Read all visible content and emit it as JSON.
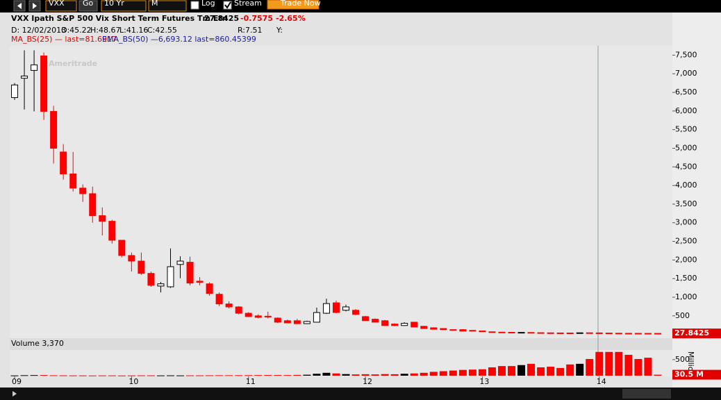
{
  "toolbar": {
    "symbol": "VXX",
    "go": "Go",
    "period": "10 Yr",
    "aggregation": "M",
    "log": "Log",
    "stream": "Stream",
    "trade": "Trade Now"
  },
  "header": {
    "name": "VXX Ipath S&P 500 Vix Short Term Futures Tm Etn",
    "price": "27.8425",
    "change": "-0.7575",
    "change_pct": "-2.65%",
    "date": "D: 12/02/2013",
    "open": "O:45.22",
    "high": "H:48.67",
    "low": "L:41.16",
    "close": "C:42.55",
    "range": "R:7.51",
    "y": "Y:",
    "ma": "MA_BS(25) — last=81.6917",
    "ema": "EMA_BS(50) —6,693.12 last=860.45399"
  },
  "watermark": "Ameritrade",
  "chart_data": {
    "type": "candlestick",
    "up_color": "#000000",
    "down_color": "#ff0000",
    "ohlc": [
      [
        6360,
        6750,
        6300,
        6700
      ],
      [
        6880,
        7630,
        6040,
        6940
      ],
      [
        7090,
        7630,
        5990,
        7240
      ],
      [
        7480,
        7570,
        5760,
        5990
      ],
      [
        5990,
        6140,
        4590,
        5000
      ],
      [
        4900,
        5110,
        4160,
        4310
      ],
      [
        4310,
        4900,
        3840,
        3930
      ],
      [
        3930,
        4030,
        3560,
        3780
      ],
      [
        3780,
        3970,
        3000,
        3190
      ],
      [
        3190,
        3410,
        2660,
        3040
      ],
      [
        3040,
        3080,
        2440,
        2530
      ],
      [
        2530,
        2530,
        2070,
        2120
      ],
      [
        2120,
        2200,
        1690,
        1970
      ],
      [
        1970,
        2200,
        1600,
        1640
      ],
      [
        1640,
        1690,
        1280,
        1320
      ],
      [
        1300,
        1410,
        1130,
        1360
      ],
      [
        1280,
        2310,
        1250,
        1820
      ],
      [
        1880,
        2100,
        1510,
        1970
      ],
      [
        1940,
        2090,
        1320,
        1380
      ],
      [
        1430,
        1540,
        1320,
        1400
      ],
      [
        1360,
        1400,
        1040,
        1100
      ],
      [
        1080,
        1130,
        760,
        820
      ],
      [
        820,
        890,
        700,
        740
      ],
      [
        740,
        760,
        540,
        570
      ],
      [
        570,
        600,
        470,
        480
      ],
      [
        500,
        540,
        430,
        460
      ],
      [
        490,
        610,
        430,
        470
      ],
      [
        440,
        460,
        310,
        330
      ],
      [
        370,
        400,
        300,
        310
      ],
      [
        370,
        420,
        280,
        290
      ],
      [
        290,
        370,
        280,
        350
      ],
      [
        330,
        720,
        320,
        590
      ],
      [
        570,
        960,
        550,
        830
      ],
      [
        850,
        910,
        570,
        590
      ],
      [
        650,
        800,
        620,
        740
      ],
      [
        650,
        680,
        520,
        540
      ],
      [
        480,
        500,
        360,
        370
      ],
      [
        410,
        430,
        320,
        330
      ],
      [
        370,
        390,
        230,
        240
      ],
      [
        280,
        300,
        220,
        240
      ],
      [
        240,
        330,
        230,
        300
      ],
      [
        330,
        340,
        190,
        200
      ],
      [
        220,
        230,
        150,
        160
      ],
      [
        180,
        190,
        130,
        140
      ],
      [
        160,
        170,
        120,
        130
      ],
      [
        130,
        140,
        100,
        110
      ],
      [
        130,
        140,
        85,
        90
      ],
      [
        110,
        115,
        85,
        90
      ],
      [
        95,
        100,
        70,
        72
      ],
      [
        72,
        80,
        60,
        62
      ],
      [
        62,
        70,
        55,
        58
      ],
      [
        58,
        62,
        50,
        52
      ],
      [
        52,
        60,
        48,
        56
      ],
      [
        54,
        58,
        46,
        48
      ],
      [
        48,
        52,
        42,
        44
      ],
      [
        44,
        48,
        40,
        41
      ],
      [
        41,
        45,
        38,
        40
      ],
      [
        40,
        44,
        36,
        37
      ],
      [
        40,
        47,
        38,
        45
      ],
      [
        45.22,
        48.67,
        41.16,
        42.55
      ],
      [
        42,
        44,
        36,
        38
      ],
      [
        38,
        40,
        33,
        34
      ],
      [
        34,
        36,
        30,
        31
      ],
      [
        31,
        33,
        29,
        30
      ],
      [
        30,
        32,
        28,
        29
      ],
      [
        29,
        30,
        27,
        28.6
      ],
      [
        28.6,
        29,
        27.5,
        27.8425
      ]
    ],
    "volume": [
      8,
      15,
      18,
      20,
      12,
      10,
      8,
      8,
      6,
      8,
      8,
      6,
      8,
      10,
      10,
      8,
      10,
      8,
      10,
      10,
      12,
      14,
      14,
      14,
      16,
      18,
      20,
      20,
      18,
      24,
      30,
      60,
      90,
      70,
      50,
      40,
      45,
      40,
      50,
      45,
      60,
      70,
      90,
      120,
      140,
      160,
      180,
      190,
      200,
      260,
      300,
      300,
      330,
      370,
      260,
      280,
      240,
      350,
      370,
      520,
      740,
      740,
      740,
      650,
      520,
      560,
      30.5
    ],
    "xlim": [
      -0.5,
      67.5
    ],
    "xticks": [
      {
        "value": 0,
        "label": "09"
      },
      {
        "value": 12,
        "label": "10"
      },
      {
        "value": 24,
        "label": "11"
      },
      {
        "value": 36,
        "label": "12"
      },
      {
        "value": 48,
        "label": "13"
      },
      {
        "value": 60,
        "label": "14"
      }
    ],
    "ylim": [
      -100,
      7750
    ],
    "yticks": [
      500,
      {
        "value": 1000,
        "label": "1,000"
      },
      {
        "value": 1500,
        "label": "1,500"
      },
      {
        "value": 2000,
        "label": "2,000"
      },
      {
        "value": 2500,
        "label": "2,500"
      },
      {
        "value": 3000,
        "label": "3,000"
      },
      {
        "value": 3500,
        "label": "3,500"
      },
      {
        "value": 4000,
        "label": "4,000"
      },
      {
        "value": 4500,
        "label": "4,500"
      },
      {
        "value": 5000,
        "label": "5,000"
      },
      {
        "value": 5500,
        "label": "5,500"
      },
      {
        "value": 6000,
        "label": "6,000"
      },
      {
        "value": 6500,
        "label": "6,500"
      },
      {
        "value": 7000,
        "label": "7,000"
      },
      {
        "value": 7500,
        "label": "7,500"
      }
    ],
    "last_price": 27.8425,
    "volume_title": "Volume 3,370",
    "volume_ylim": [
      0,
      800
    ],
    "volume_yticks": [
      500
    ],
    "volume_unit": "Millions",
    "current_volume": {
      "value": 30.5,
      "label": "30.5 M"
    }
  }
}
